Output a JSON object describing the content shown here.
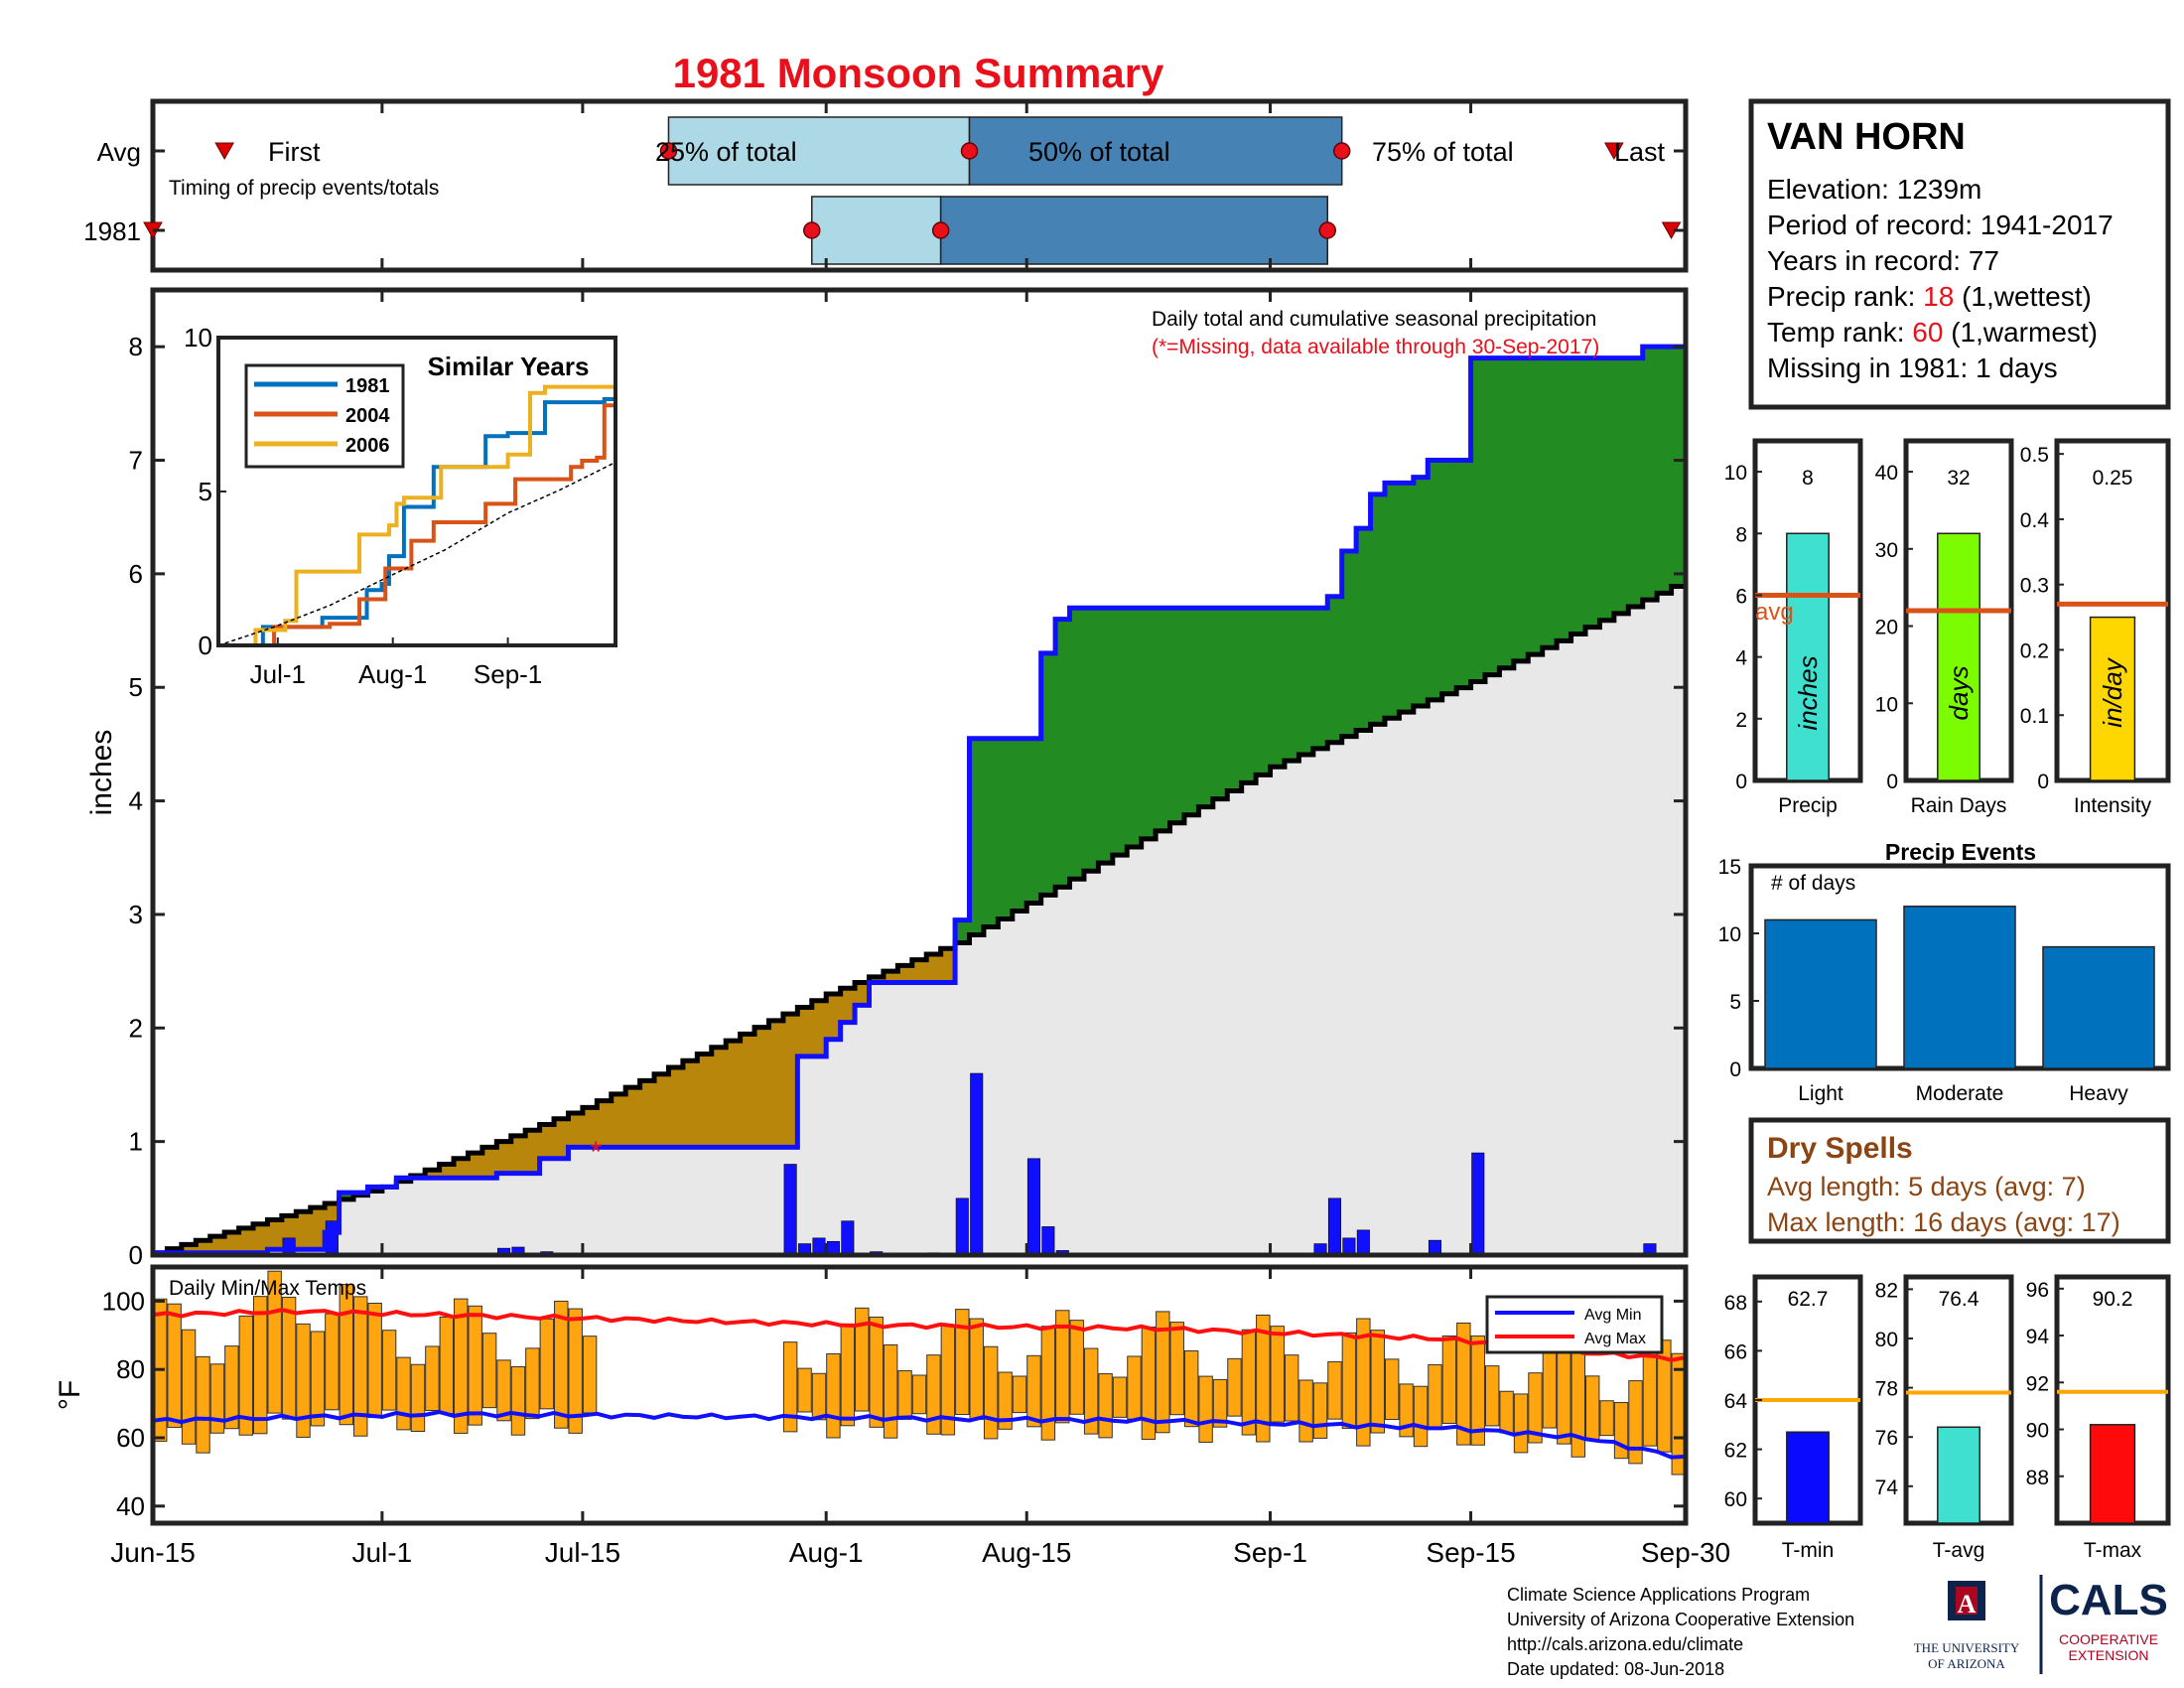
{
  "title": "1981 Monsoon Summary",
  "timing": {
    "row_labels": [
      "Avg",
      "1981"
    ],
    "caption": "Timing of precip events/totals",
    "first_label": "First",
    "last_label": "Last",
    "q25_label": "25% of total",
    "q50_label": "50% of total",
    "q75_label": "75% of total"
  },
  "station": {
    "name": "VAN HORN",
    "elevation_label": "Elevation: 1239m",
    "period_label": "Period of record: 1941-2017",
    "years_label": "Years in record: 77",
    "precip_rank_prefix": "Precip rank: ",
    "precip_rank_value": "18",
    "precip_rank_suffix": " (1,wettest)",
    "temp_rank_prefix": "Temp rank: ",
    "temp_rank_value": "60",
    "temp_rank_suffix": " (1,warmest)",
    "missing_label": "Missing in 1981: 1 days"
  },
  "main": {
    "ylabel": "inches",
    "note1": "Daily total and cumulative seasonal precipitation",
    "note2": "(*=Missing, data available through 30-Sep-2017)",
    "missing_marker": "*"
  },
  "inset": {
    "title": "Similar Years",
    "legend": [
      "1981",
      "2004",
      "2006"
    ]
  },
  "temps": {
    "title": "Daily Min/Max Temps",
    "ylabel": "°F",
    "legend_min": "Avg Min",
    "legend_max": "Avg Max"
  },
  "summary_bars": {
    "precip": {
      "value_label": "8",
      "unit": "inches",
      "label": "Precip",
      "avg_label": "avg"
    },
    "days": {
      "value_label": "32",
      "unit": "days",
      "label": "Rain Days"
    },
    "intensity": {
      "value_label": "0.25",
      "unit": "in/day",
      "label": "Intensity"
    }
  },
  "events": {
    "title": "Precip Events",
    "ylabel": "# of days"
  },
  "dry_spells": {
    "title": "Dry Spells",
    "avg_length": "Avg length: 5 days (avg: 7)",
    "max_length": "Max length: 16 days (avg: 17)"
  },
  "temp_bars": {
    "tmin": {
      "value_label": "62.7",
      "label": "T-min"
    },
    "tavg": {
      "value_label": "76.4",
      "label": "T-avg"
    },
    "tmax": {
      "value_label": "90.2",
      "label": "T-max"
    }
  },
  "footer": {
    "line1": "Climate Science Applications Program",
    "line2": "University of Arizona Cooperative Extension",
    "line3": "http://cals.arizona.edu/climate",
    "line4": " Date updated: 08-Jun-2018",
    "ua_line1": "THE UNIVERSITY",
    "ua_line2": "OF ARIZONA",
    "ua_letter": "A",
    "cals_title": "CALS",
    "cals_line1": "COOPERATIVE",
    "cals_line2": "EXTENSION"
  },
  "colors": {
    "title_red": "#e8101a",
    "green": "#228b22",
    "brown": "#b8860b",
    "gray_fill": "#e8e8e8",
    "blue": "#1010ff",
    "light_blue": "#add8e6",
    "steel_blue": "#4682b4",
    "avg_orange": "#d95319",
    "temp_bar": "#ffa510",
    "ua_navy": "#0c234b",
    "ua_red": "#ab0520"
  },
  "chart_data": [
    {
      "type": "area",
      "name": "Daily total and cumulative seasonal precipitation",
      "x_axis_ticks": [
        "Jun-15",
        "Jul-1",
        "Jul-15",
        "Aug-1",
        "Aug-15",
        "Sep-1",
        "Sep-15",
        "Sep-30"
      ],
      "ylabel": "inches",
      "ylim": [
        0,
        8.5
      ],
      "yticks": [
        0,
        1,
        2,
        3,
        4,
        5,
        6,
        7,
        8
      ],
      "cumulative_1981": [
        [
          "Jun-15",
          0.02
        ],
        [
          "Jun-23",
          0.05
        ],
        [
          "Jun-27",
          0.2
        ],
        [
          "Jun-28",
          0.55
        ],
        [
          "Jun-30",
          0.6
        ],
        [
          "Jul-2",
          0.68
        ],
        [
          "Jul-9",
          0.72
        ],
        [
          "Jul-12",
          0.85
        ],
        [
          "Jul-14",
          0.95
        ],
        [
          "Jul-29",
          0.95
        ],
        [
          "Jul-30",
          1.75
        ],
        [
          "Aug-1",
          1.9
        ],
        [
          "Aug-2",
          2.05
        ],
        [
          "Aug-3",
          2.2
        ],
        [
          "Aug-4",
          2.4
        ],
        [
          "Aug-10",
          2.95
        ],
        [
          "Aug-11",
          4.55
        ],
        [
          "Aug-16",
          5.3
        ],
        [
          "Aug-17",
          5.6
        ],
        [
          "Aug-18",
          5.7
        ],
        [
          "Sep-4",
          5.7
        ],
        [
          "Sep-5",
          5.8
        ],
        [
          "Sep-6",
          6.2
        ],
        [
          "Sep-7",
          6.4
        ],
        [
          "Sep-8",
          6.7
        ],
        [
          "Sep-9",
          6.8
        ],
        [
          "Sep-11",
          6.85
        ],
        [
          "Sep-12",
          7.0
        ],
        [
          "Sep-15",
          7.9
        ],
        [
          "Sep-26",
          7.9
        ],
        [
          "Sep-27",
          8.0
        ],
        [
          "Sep-30",
          8.0
        ]
      ],
      "cumulative_average": [
        [
          "Jun-15",
          0.02
        ],
        [
          "Jul-1",
          0.6
        ],
        [
          "Jul-15",
          1.3
        ],
        [
          "Aug-1",
          2.3
        ],
        [
          "Aug-10",
          2.75
        ],
        [
          "Aug-15",
          3.1
        ],
        [
          "Sep-1",
          4.3
        ],
        [
          "Sep-15",
          5.05
        ],
        [
          "Sep-30",
          5.95
        ]
      ],
      "daily_totals": [
        [
          "Jun-24",
          0.15
        ],
        [
          "Jun-27",
          0.3
        ],
        [
          "Jul-9",
          0.06
        ],
        [
          "Jul-10",
          0.07
        ],
        [
          "Jul-12",
          0.03
        ],
        [
          "Jul-29",
          0.8
        ],
        [
          "Jul-30",
          0.1
        ],
        [
          "Jul-31",
          0.15
        ],
        [
          "Aug-1",
          0.12
        ],
        [
          "Aug-2",
          0.3
        ],
        [
          "Aug-4",
          0.03
        ],
        [
          "Aug-8",
          0.02
        ],
        [
          "Aug-10",
          0.5
        ],
        [
          "Aug-11",
          1.6
        ],
        [
          "Aug-15",
          0.85
        ],
        [
          "Aug-16",
          0.25
        ],
        [
          "Aug-17",
          0.04
        ],
        [
          "Sep-4",
          0.1
        ],
        [
          "Sep-5",
          0.5
        ],
        [
          "Sep-6",
          0.15
        ],
        [
          "Sep-7",
          0.22
        ],
        [
          "Sep-12",
          0.13
        ],
        [
          "Sep-15",
          0.9
        ],
        [
          "Sep-27",
          0.1
        ]
      ],
      "missing_days": [
        "Jul-16"
      ],
      "annotation": "(*=Missing, data available through 30-Sep-2017)"
    },
    {
      "type": "line",
      "title": "Similar Years",
      "x_axis_ticks": [
        "Jul-1",
        "Aug-1",
        "Sep-1"
      ],
      "ylim": [
        0,
        10
      ],
      "yticks": [
        0,
        5,
        10
      ],
      "series": [
        {
          "name": "1981",
          "values": [
            [
              0,
              0
            ],
            [
              12,
              0.6
            ],
            [
              28,
              0.9
            ],
            [
              40,
              1.8
            ],
            [
              44,
              2.0
            ],
            [
              46,
              2.9
            ],
            [
              50,
              4.5
            ],
            [
              58,
              5.8
            ],
            [
              70,
              5.8
            ],
            [
              72,
              6.8
            ],
            [
              78,
              6.9
            ],
            [
              88,
              7.9
            ],
            [
              102,
              7.9
            ],
            [
              104,
              8.0
            ],
            [
              107,
              8.0
            ]
          ]
        },
        {
          "name": "2004",
          "values": [
            [
              0,
              0
            ],
            [
              15,
              0.6
            ],
            [
              30,
              0.7
            ],
            [
              38,
              1.5
            ],
            [
              45,
              2.5
            ],
            [
              52,
              3.4
            ],
            [
              58,
              4.0
            ],
            [
              72,
              4.6
            ],
            [
              80,
              5.4
            ],
            [
              95,
              5.8
            ],
            [
              98,
              6.0
            ],
            [
              102,
              6.1
            ],
            [
              104,
              7.8
            ],
            [
              107,
              8.6
            ]
          ]
        },
        {
          "name": "2006",
          "values": [
            [
              0,
              0
            ],
            [
              10,
              0.5
            ],
            [
              18,
              0.8
            ],
            [
              21,
              2.4
            ],
            [
              35,
              2.4
            ],
            [
              38,
              3.6
            ],
            [
              46,
              3.9
            ],
            [
              48,
              4.6
            ],
            [
              50,
              4.8
            ],
            [
              60,
              5.8
            ],
            [
              63,
              5.8
            ],
            [
              78,
              6.2
            ],
            [
              84,
              8.2
            ],
            [
              88,
              8.4
            ],
            [
              107,
              8.6
            ]
          ]
        },
        {
          "name": "Average",
          "values": [
            [
              0,
              0
            ],
            [
              15,
              0.6
            ],
            [
              30,
              1.3
            ],
            [
              47,
              2.3
            ],
            [
              61,
              3.1
            ],
            [
              78,
              4.3
            ],
            [
              92,
              5.05
            ],
            [
              107,
              5.95
            ]
          ]
        }
      ]
    },
    {
      "type": "bar",
      "title": "Daily Min/Max Temps",
      "ylabel": "°F",
      "ylim": [
        35,
        110
      ],
      "yticks": [
        40,
        60,
        80,
        100
      ],
      "x_axis_ticks": [
        "Jun-15",
        "Jul-1",
        "Jul-15",
        "Aug-1",
        "Aug-15",
        "Sep-1",
        "Sep-15",
        "Sep-30"
      ],
      "avg_min": [
        [
          0,
          65
        ],
        [
          20,
          67
        ],
        [
          45,
          66
        ],
        [
          70,
          65
        ],
        [
          90,
          63
        ],
        [
          100,
          60
        ],
        [
          107,
          54
        ]
      ],
      "avg_max": [
        [
          0,
          96
        ],
        [
          10,
          97
        ],
        [
          30,
          95
        ],
        [
          50,
          93
        ],
        [
          70,
          92
        ],
        [
          90,
          89
        ],
        [
          100,
          85
        ],
        [
          107,
          83
        ]
      ],
      "missing_range": [
        "Jul-16",
        "Jul-28"
      ]
    },
    {
      "type": "bar",
      "categories": [
        "Precip",
        "Rain Days",
        "Intensity"
      ],
      "values": [
        8,
        32,
        0.25
      ],
      "averages": [
        6,
        22,
        0.27
      ],
      "units": [
        "inches",
        "days",
        "in/day"
      ],
      "ylims": [
        [
          0,
          11
        ],
        [
          0,
          44
        ],
        [
          0,
          0.52
        ]
      ]
    },
    {
      "type": "bar",
      "title": "Precip Events",
      "ylabel": "# of days",
      "categories": [
        "Light",
        "Moderate",
        "Heavy"
      ],
      "values": [
        11,
        12,
        9
      ],
      "ylim": [
        0,
        15
      ],
      "yticks": [
        0,
        5,
        10,
        15
      ]
    },
    {
      "type": "bar",
      "categories": [
        "T-min",
        "T-avg",
        "T-max"
      ],
      "values": [
        62.7,
        76.4,
        90.2
      ],
      "averages": [
        64,
        77.8,
        91.6
      ],
      "ylims": [
        [
          59,
          69
        ],
        [
          72.5,
          82.5
        ],
        [
          86,
          96.5
        ]
      ],
      "yticks": [
        [
          60,
          62,
          64,
          66,
          68
        ],
        [
          74,
          76,
          78,
          80,
          82
        ],
        [
          88,
          90,
          92,
          94,
          96
        ]
      ]
    }
  ]
}
